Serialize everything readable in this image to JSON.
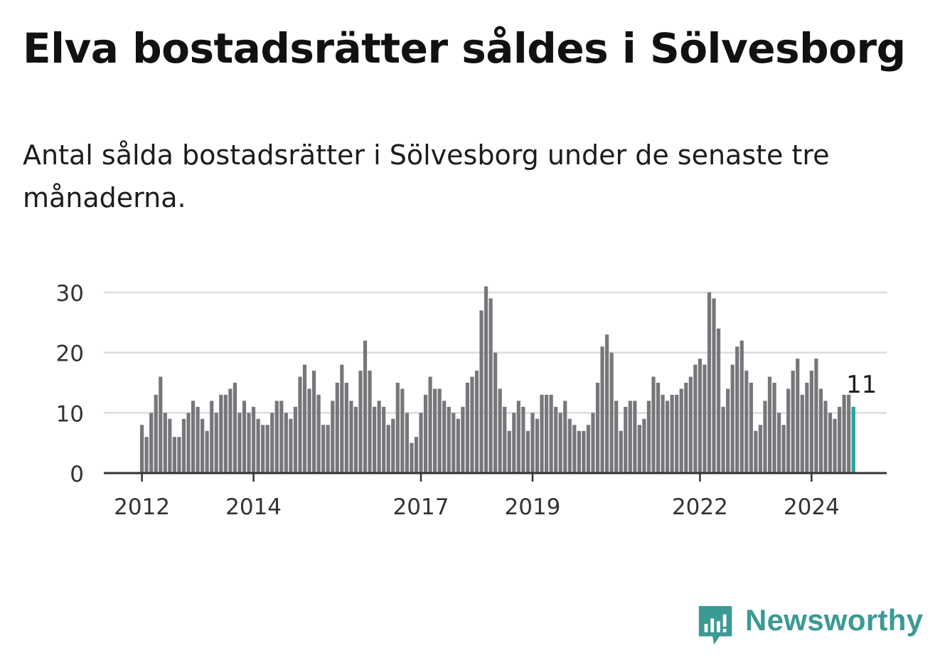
{
  "title": "Elva bostadsrätter såldes i Sölvesborg",
  "subtitle": "Antal sålda bostadsrätter i Sölvesborg under de senaste tre månaderna.",
  "brand": {
    "name": "Newsworthy",
    "icon": "newsworthy-logo-icon",
    "color": "#3b9a94"
  },
  "chart_data": {
    "type": "bar",
    "x_start": "2012-01",
    "x_ticks": [
      "2012",
      "2014",
      "2017",
      "2019",
      "2022",
      "2024"
    ],
    "y_ticks": [
      "0",
      "10",
      "20",
      "30"
    ],
    "ylim": [
      0,
      31
    ],
    "grid": true,
    "bar_color": "#77767b",
    "highlight_color": "#27a39a",
    "highlight_label": "11",
    "values": [
      8,
      6,
      10,
      13,
      16,
      10,
      9,
      6,
      6,
      9,
      10,
      12,
      11,
      9,
      7,
      12,
      10,
      13,
      13,
      14,
      15,
      10,
      12,
      10,
      11,
      9,
      8,
      8,
      10,
      12,
      12,
      10,
      9,
      11,
      16,
      18,
      14,
      17,
      13,
      8,
      8,
      12,
      15,
      18,
      15,
      12,
      11,
      17,
      22,
      17,
      11,
      12,
      11,
      8,
      9,
      15,
      14,
      10,
      5,
      6,
      10,
      13,
      16,
      14,
      14,
      12,
      11,
      10,
      9,
      11,
      15,
      16,
      17,
      27,
      31,
      29,
      20,
      14,
      11,
      7,
      10,
      12,
      11,
      7,
      10,
      9,
      13,
      13,
      13,
      11,
      10,
      12,
      9,
      8,
      7,
      7,
      8,
      10,
      15,
      21,
      23,
      20,
      12,
      7,
      11,
      12,
      12,
      8,
      9,
      12,
      16,
      15,
      13,
      12,
      13,
      13,
      14,
      15,
      16,
      18,
      19,
      18,
      30,
      29,
      24,
      11,
      14,
      18,
      21,
      22,
      17,
      15,
      7,
      8,
      12,
      16,
      15,
      10,
      8,
      14,
      17,
      19,
      13,
      15,
      17,
      19,
      14,
      12,
      10,
      9,
      11,
      13,
      13,
      11
    ]
  }
}
